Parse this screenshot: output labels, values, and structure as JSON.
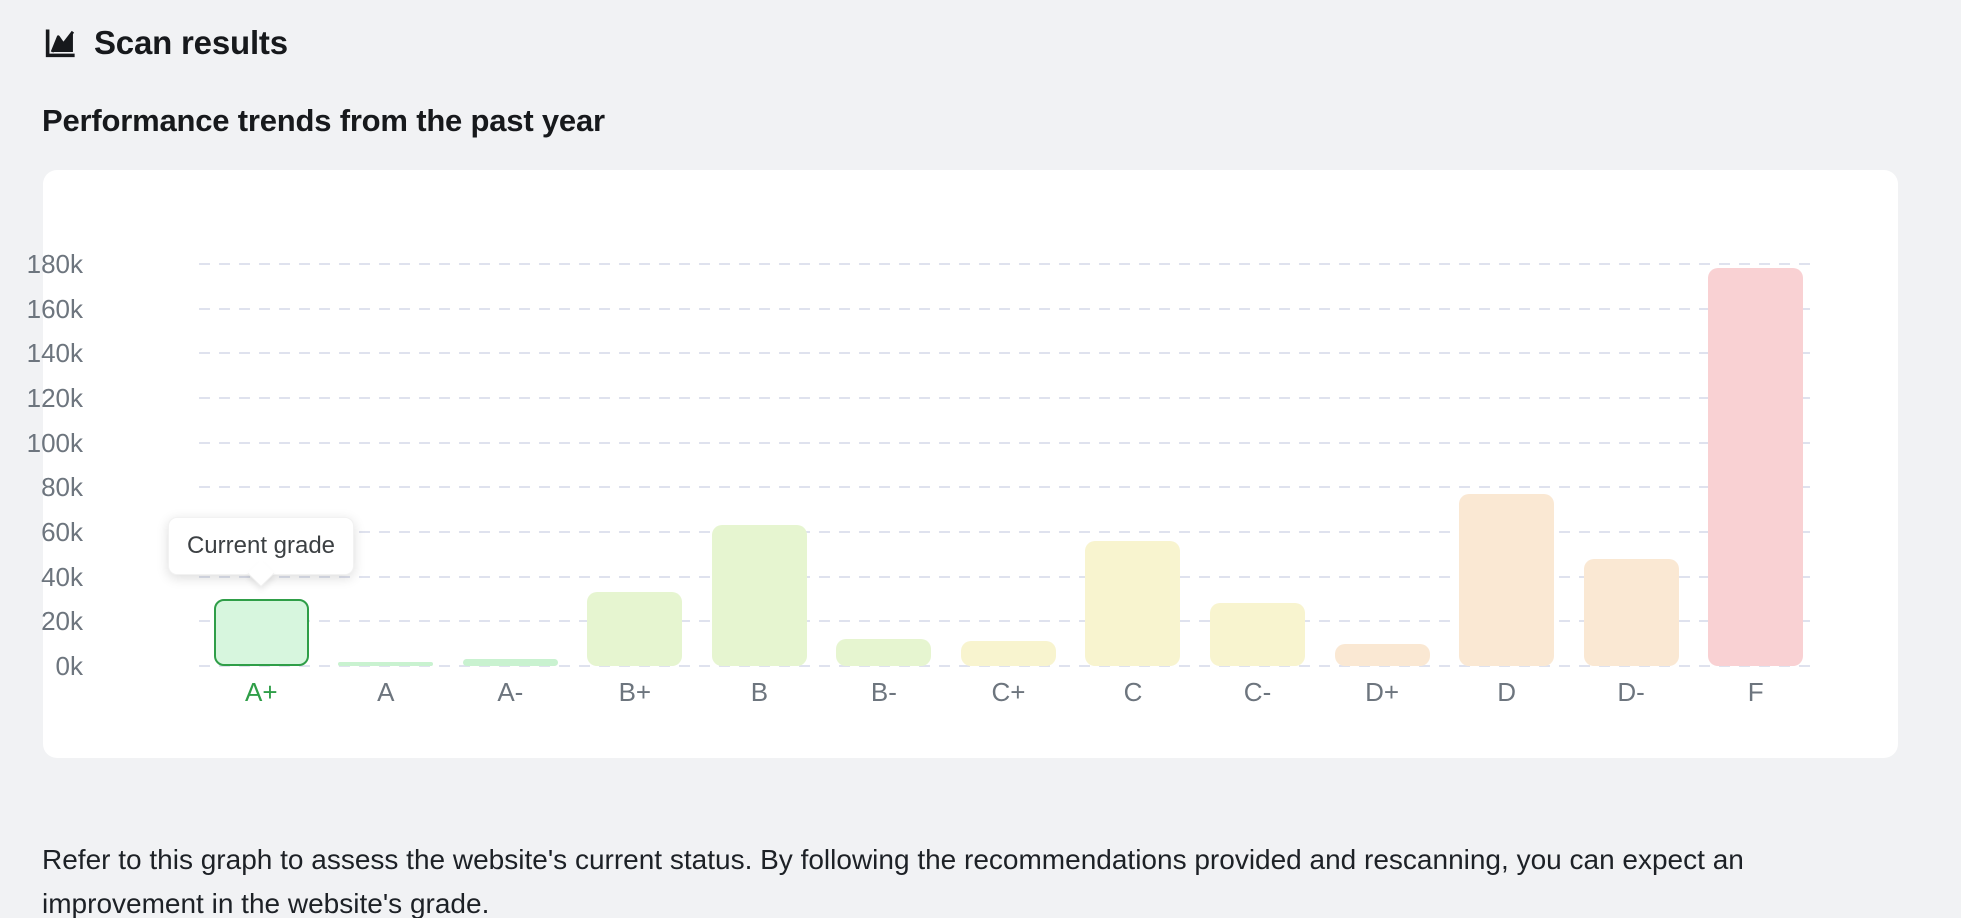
{
  "header": {
    "title": "Scan results",
    "icon": "line-chart-icon"
  },
  "subtitle": "Performance trends from the past year",
  "tooltip": {
    "label": "Current grade"
  },
  "description": "Refer to this graph to assess the website's current status. By following the recommendations provided and rescanning, you can expect an improvement in the website's grade.",
  "chart_data": {
    "type": "bar",
    "title": "Performance trends from the past year",
    "categories": [
      "A+",
      "A",
      "A-",
      "B+",
      "B",
      "B-",
      "C+",
      "C",
      "C-",
      "D+",
      "D",
      "D-",
      "F"
    ],
    "values": [
      30000,
      2000,
      3000,
      33000,
      63000,
      12000,
      11000,
      56000,
      28000,
      10000,
      77000,
      48000,
      178000
    ],
    "bar_colors": [
      "#d7f6de",
      "#c9f2d0",
      "#c9f2d0",
      "#e6f5d0",
      "#e6f5d0",
      "#e6f5d0",
      "#f8f4cf",
      "#f8f4cf",
      "#f8f4cf",
      "#fae8d3",
      "#fae8d3",
      "#fae8d3",
      "#f9d1d3"
    ],
    "highlighted_category": "A+",
    "highlight_border_color": "#2f9e48",
    "highlight_label_color": "#2f9e48",
    "annotation": "Current grade",
    "xlabel": "",
    "ylabel": "",
    "ylim": [
      0,
      180000
    ],
    "ytick_labels_bottom_to_top": [
      "0k",
      "20k",
      "40k",
      "60k",
      "80k",
      "100k",
      "120k",
      "140k",
      "160k",
      "180k"
    ],
    "grid": true,
    "grid_style": "dashed",
    "grid_color": "#dfe2ee",
    "legend": false,
    "axis_label_color": "#6d757e",
    "background_color": "#ffffff",
    "page_background_color": "#f1f2f4"
  }
}
